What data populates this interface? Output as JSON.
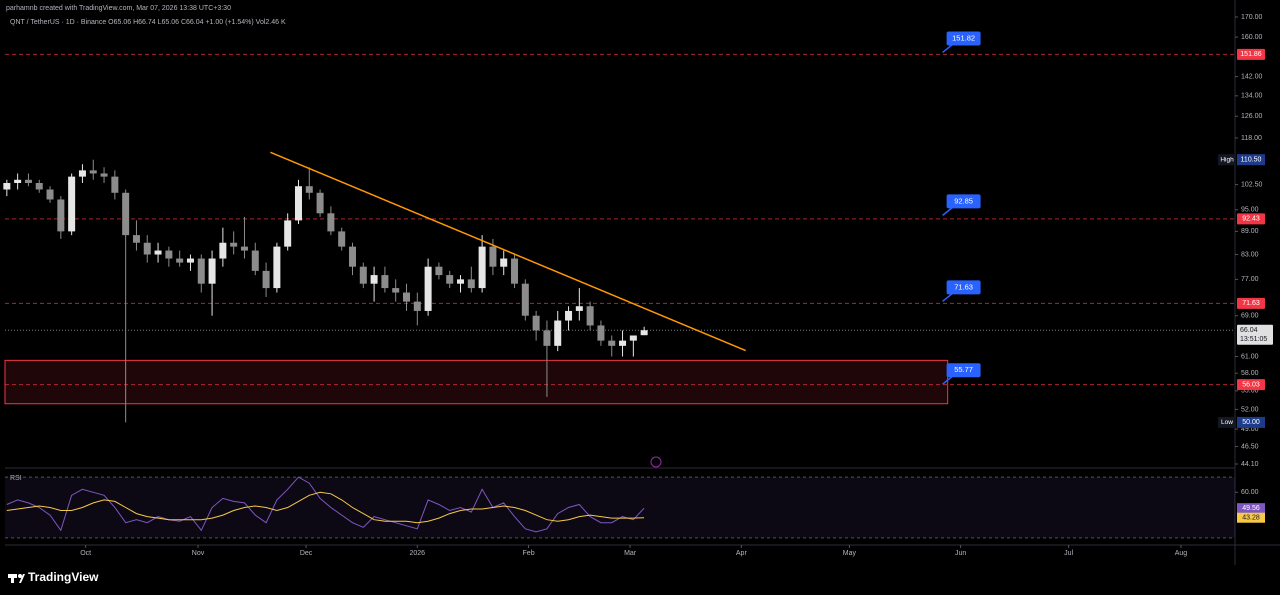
{
  "header": {
    "credit": "parhamnb created with TradingView.com, Mar 07, 2026 13:38 UTC+3:30",
    "symbol_line": "QNT / TetherUS · 1D · Binance  O65.06 H66.74 L65.06 C66.04 +1.00 (+1.54%) Vol2.46 K"
  },
  "footer": {
    "brand": "TradingView"
  },
  "chart_data": [
    {
      "type": "candlestick",
      "log_scale": true,
      "grid": false,
      "ylim": [
        44.1,
        170
      ],
      "yticks": [
        {
          "value": 170,
          "label": "170.00"
        },
        {
          "value": 160,
          "label": "160.00"
        },
        {
          "value": 142,
          "label": "142.00"
        },
        {
          "value": 134,
          "label": "134.00"
        },
        {
          "value": 126,
          "label": "126.00"
        },
        {
          "value": 118,
          "label": "118.00"
        },
        {
          "value": 102.5,
          "label": "102.50"
        },
        {
          "value": 95,
          "label": "95.00"
        },
        {
          "value": 89,
          "label": "89.00"
        },
        {
          "value": 83,
          "label": "83.00"
        },
        {
          "value": 77,
          "label": "77.00"
        },
        {
          "value": 69,
          "label": "69.00"
        },
        {
          "value": 61,
          "label": "61.00"
        },
        {
          "value": 58,
          "label": "58.00"
        },
        {
          "value": 55,
          "label": "55.00"
        },
        {
          "value": 52,
          "label": "52.00"
        },
        {
          "value": 49,
          "label": "49.00"
        },
        {
          "value": 46.5,
          "label": "46.50"
        },
        {
          "value": 44.1,
          "label": "44.10"
        }
      ],
      "xlim": [
        -0.17,
        113.7
      ],
      "xticks": [
        {
          "value": 7.3,
          "label": "Oct"
        },
        {
          "value": 17.7,
          "label": "Nov"
        },
        {
          "value": 27.7,
          "label": "Dec"
        },
        {
          "value": 38,
          "label": "2026"
        },
        {
          "value": 48.3,
          "label": "Feb"
        },
        {
          "value": 57.7,
          "label": "Mar"
        },
        {
          "value": 68,
          "label": "Apr"
        },
        {
          "value": 78,
          "label": "May"
        },
        {
          "value": 88.3,
          "label": "Jun"
        },
        {
          "value": 98.3,
          "label": "Jul"
        },
        {
          "value": 108.7,
          "label": "Aug"
        }
      ],
      "up_color": "#e6e6e6",
      "down_color": "#8c8c8c",
      "open": [
        101,
        103,
        104,
        103,
        101,
        98,
        89,
        105,
        107,
        106,
        105,
        100,
        88,
        86,
        83,
        84,
        82,
        81,
        82,
        76,
        82,
        86,
        85,
        84,
        79,
        75,
        85,
        92,
        102,
        100,
        94,
        89,
        85,
        80,
        76,
        78,
        75,
        74,
        72,
        70,
        80,
        78,
        76,
        77,
        75,
        85,
        80,
        82,
        76,
        69,
        66,
        63,
        68,
        70,
        71,
        67,
        64,
        63,
        64,
        65.06
      ],
      "high": [
        104,
        106,
        106,
        104,
        102,
        99,
        106,
        109,
        110.5,
        108,
        107,
        101,
        92,
        88,
        86,
        85,
        84,
        83,
        83,
        84,
        90,
        89,
        93,
        86,
        81,
        86,
        94,
        104,
        108,
        101,
        96,
        90,
        86,
        81,
        80,
        80,
        77,
        76,
        74,
        82,
        81,
        79,
        78,
        80,
        88,
        87,
        84,
        83,
        77,
        70,
        68,
        70,
        71,
        75,
        72,
        68,
        65,
        66,
        65,
        66.74
      ],
      "low": [
        99,
        101,
        102,
        100,
        97,
        87,
        88,
        103,
        104,
        103,
        98,
        50,
        84,
        81,
        81,
        80,
        80,
        79,
        74,
        69,
        80,
        83,
        82,
        78,
        73,
        74,
        84,
        91,
        98,
        93,
        88,
        84,
        78,
        75,
        72,
        74,
        72,
        70,
        67,
        69,
        77,
        75,
        74,
        74,
        74,
        78,
        78,
        75,
        68,
        64,
        54,
        62,
        66,
        68,
        66,
        63,
        61,
        61,
        61,
        65.06
      ],
      "close": [
        103,
        104,
        103,
        101,
        98,
        89,
        105,
        107,
        106,
        105,
        100,
        88,
        86,
        83,
        84,
        82,
        81,
        82,
        76,
        82,
        86,
        85,
        84,
        79,
        75,
        85,
        92,
        102,
        100,
        94,
        89,
        85,
        80,
        76,
        78,
        75,
        74,
        72,
        70,
        80,
        78,
        76,
        77,
        75,
        85,
        80,
        82,
        76,
        69,
        66,
        63,
        68,
        70,
        71,
        67,
        64,
        63,
        64,
        65,
        66.04
      ],
      "last_price_color": "#787b86",
      "countdown": "13:51:05",
      "high_tag": {
        "label": "High",
        "value": 110.5,
        "value_label": "110.50"
      },
      "low_tag": {
        "label": "Low",
        "value": 50,
        "value_label": "50.00"
      },
      "levels": {
        "color": "#f23645",
        "values": [
          151.86,
          92.43,
          71.63,
          56.03
        ]
      },
      "callouts": {
        "color": "#2962ff",
        "x": 87,
        "values": [
          151.82,
          92.85,
          71.63,
          55.77
        ]
      },
      "zone": {
        "from": -0.17,
        "to": 87.1,
        "low": 52.9,
        "high": 60.3,
        "color": "#f23645"
      },
      "trendline": {
        "color": "#ff9800",
        "x": [
          24.4,
          68.4
        ],
        "y": [
          113,
          62.1
        ]
      }
    },
    {
      "type": "line",
      "title": "RSI",
      "ylim": [
        26,
        74
      ],
      "yticks": [
        {
          "value": 60,
          "label": "60.00"
        }
      ],
      "bands": [
        30,
        70
      ],
      "series": [
        {
          "color": "#7e57c2",
          "values": [
            52,
            55,
            53,
            50,
            45,
            35,
            58,
            62,
            60,
            58,
            50,
            40,
            42,
            40,
            44,
            42,
            41,
            44,
            35,
            50,
            56,
            54,
            53,
            45,
            40,
            55,
            62,
            70,
            66,
            56,
            50,
            45,
            40,
            37,
            44,
            42,
            40,
            38,
            36,
            55,
            52,
            48,
            50,
            47,
            62,
            50,
            53,
            44,
            36,
            34,
            36,
            46,
            50,
            52,
            44,
            40,
            40,
            44,
            42,
            49.56
          ]
        },
        {
          "color": "#f7c948",
          "values": [
            48,
            49,
            50,
            51,
            50,
            48,
            48,
            50,
            53,
            55,
            54,
            50,
            46,
            44,
            43,
            42,
            42,
            42,
            42,
            43,
            45,
            48,
            50,
            51,
            50,
            48,
            50,
            54,
            58,
            60,
            59,
            55,
            50,
            46,
            42,
            41,
            41,
            41,
            40,
            41,
            43,
            46,
            48,
            49,
            49,
            50,
            51,
            50,
            48,
            45,
            42,
            41,
            42,
            44,
            45,
            44,
            43,
            43,
            43,
            43.28
          ]
        }
      ]
    }
  ]
}
